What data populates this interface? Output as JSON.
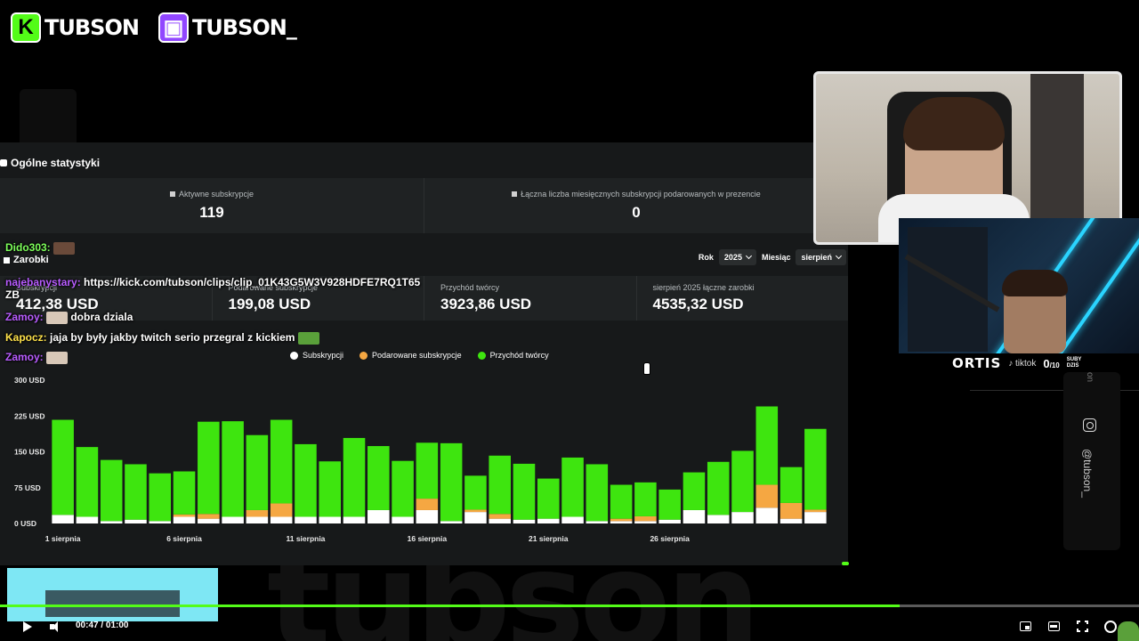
{
  "logos": [
    {
      "icon": "kick-logo",
      "letter": "K",
      "name": "TUBSON"
    },
    {
      "icon": "twitch-logo",
      "letter": "▣",
      "name": "TUBSON_"
    }
  ],
  "watermark": "tubson",
  "panel": {
    "title": "Ogólne statystyki",
    "stats": [
      {
        "label": "Aktywne subskrypcje",
        "value": "119"
      },
      {
        "label": "Łączna liczba miesięcznych subskrypcji podarowanych w prezencie",
        "value": "0"
      }
    ],
    "earnings_title": "Zarobki",
    "filters": {
      "year_label": "Rok",
      "year_value": "2025",
      "month_label": "Miesiąc",
      "month_value": "sierpień"
    },
    "earnings": [
      {
        "label": "Subskrypcji",
        "value": "412,38 USD"
      },
      {
        "label": "Podarowane subskrypcje",
        "value": "199,08 USD"
      },
      {
        "label": "Przychód twórcy",
        "value": "3923,86 USD"
      },
      {
        "label": "sierpień 2025 łączne zarobki",
        "value": "4535,32 USD"
      }
    ]
  },
  "chart_data": {
    "type": "bar",
    "stacked": true,
    "legend": [
      "Subskrypcji",
      "Podarowane subskrypcje",
      "Przychód twórcy"
    ],
    "legend_position": "top-center",
    "colors": {
      "Subskrypcji": "#ffffff",
      "Podarowane subskrypcje": "#f5a742",
      "Przychód twórcy": "#3ee50f"
    },
    "y_ticks": [
      "0 USD",
      "75 USD",
      "150 USD",
      "225 USD",
      "300 USD"
    ],
    "ylim": [
      0,
      300
    ],
    "x_tick_labels": [
      "1 sierpnia",
      "6 sierpnia",
      "11 sierpnia",
      "16 sierpnia",
      "21 sierpnia",
      "26 sierpnia"
    ],
    "x_tick_indices": [
      0,
      5,
      10,
      15,
      20,
      25
    ],
    "grid": false,
    "series": [
      {
        "name": "Subskrypcji",
        "values": [
          18,
          14,
          5,
          8,
          5,
          14,
          10,
          14,
          14,
          14,
          14,
          14,
          14,
          28,
          14,
          28,
          5,
          24,
          10,
          8,
          10,
          14,
          5,
          5,
          5,
          8,
          28,
          18,
          24,
          33,
          10,
          24
        ]
      },
      {
        "name": "Podarowane subskrypcje",
        "values": [
          0,
          0,
          0,
          0,
          0,
          5,
          10,
          0,
          14,
          28,
          0,
          0,
          0,
          0,
          0,
          24,
          0,
          5,
          10,
          0,
          0,
          0,
          0,
          5,
          10,
          0,
          0,
          0,
          0,
          48,
          33,
          5
        ]
      },
      {
        "name": "Przychód twórcy",
        "values": [
          199,
          146,
          128,
          116,
          100,
          90,
          193,
          200,
          157,
          175,
          152,
          116,
          165,
          134,
          117,
          117,
          163,
          71,
          122,
          117,
          84,
          124,
          119,
          71,
          71,
          63,
          79,
          111,
          128,
          164,
          75,
          169
        ]
      }
    ]
  },
  "chat": [
    {
      "user": "Dido303:",
      "color": "#7dff5a",
      "text": "",
      "emote": "emote-face",
      "top": 271
    },
    {
      "user": "najebanystary:",
      "color": "#b85cff",
      "text": "https://kick.com/tubson/clips/clip_01K43G5W3V928HDFE7RQ1T65",
      "text2": "ZB",
      "top": 310
    },
    {
      "user": "Zamoy:",
      "color": "#b85cff",
      "text": "dobra dziala",
      "emote": "emote-cat",
      "top": 349
    },
    {
      "user": "Kapocz:",
      "color": "#ffe24a",
      "text": "jaja by były jakby twitch serio przegral z kickiem",
      "emote": "emote-frog",
      "top": 372
    },
    {
      "user": "Zamoy:",
      "color": "#b85cff",
      "text": "",
      "emote": "emote-cat",
      "top": 394
    }
  ],
  "stream_overlay": {
    "name": "ORTIS",
    "mid": "♪ tiktok",
    "subs_count": "0",
    "subs_goal": "/10",
    "subs_label1": "SUBY",
    "subs_label2": "DZIŚ",
    "instagram_handle": "@tubson_",
    "handle_top": "on"
  },
  "player": {
    "time_current": "00:47",
    "time_total": "01:00",
    "progress": 0.79
  }
}
